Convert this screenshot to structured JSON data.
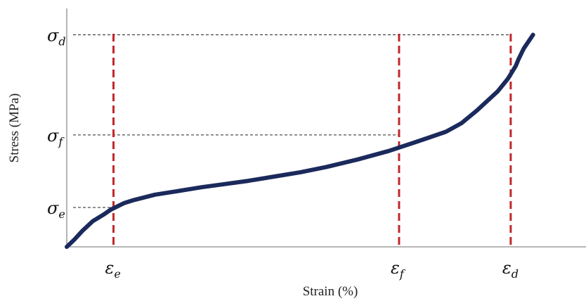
{
  "chart_data": {
    "type": "line",
    "xlabel": "Strain (%)",
    "ylabel": "Stress (MPa)",
    "xlim": [
      0,
      100
    ],
    "ylim": [
      0,
      100
    ],
    "x_ticks_visible": false,
    "y_ticks_visible": false,
    "grid": false,
    "series": [
      {
        "color": "#1b2a5c",
        "x": [
          0,
          1.5,
          3,
          5,
          7,
          8.5,
          11,
          13,
          17,
          21,
          26,
          30,
          35,
          40,
          45,
          50,
          56,
          62,
          67,
          70,
          73,
          76,
          79,
          81,
          83,
          85,
          86.5,
          87,
          88,
          89.8
        ],
        "y": [
          0,
          3.5,
          7.5,
          12,
          15,
          17.5,
          20.5,
          22,
          24.5,
          26,
          28,
          29.3,
          31,
          33,
          35,
          37.5,
          41,
          45,
          49,
          51.5,
          54,
          58,
          64,
          68.5,
          73,
          79,
          85,
          88,
          93,
          99.5
        ]
      }
    ],
    "markers": [
      {
        "symbol": "σ",
        "subscript": "e",
        "y": 18.5,
        "x_end": 9.0
      },
      {
        "symbol": "σ",
        "subscript": "f",
        "y": 52.5,
        "x_end": 64.0
      },
      {
        "symbol": "σ",
        "subscript": "d",
        "y": 99.5,
        "x_end": 85.5
      }
    ],
    "strain_markers": [
      {
        "symbol": "ε",
        "subscript": "e",
        "x": 9.0
      },
      {
        "symbol": "ε",
        "subscript": "f",
        "x": 64.0
      },
      {
        "symbol": "ε",
        "subscript": "d",
        "x": 85.5
      }
    ],
    "colors": {
      "curve": "#1b2a5c",
      "vertical_marker": "#c0282d",
      "horizontal_marker": "#222222",
      "axis": "#8c8c8c"
    }
  }
}
